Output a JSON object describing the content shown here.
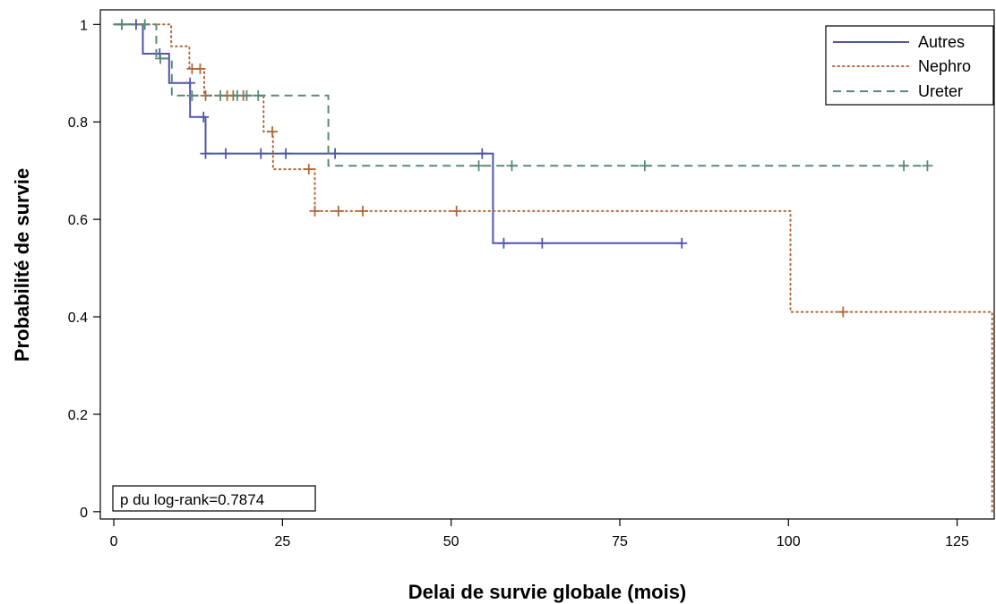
{
  "chart_data": {
    "type": "line",
    "step": true,
    "xlabel": "Delai de survie globale (mois)",
    "ylabel": "Probabilité de survie",
    "xlim": [
      -2,
      130.5
    ],
    "ylim": [
      -0.015,
      1.03
    ],
    "xticks": [
      0,
      25,
      50,
      75,
      100,
      125
    ],
    "yticks": [
      0,
      0.2,
      0.4,
      0.6,
      0.8,
      1
    ],
    "xtick_labels": [
      "0",
      "25",
      "50",
      "75",
      "100",
      "125"
    ],
    "ytick_labels": [
      "0",
      "0.2",
      "0.4",
      "0.6",
      "0.8",
      "1"
    ],
    "legend_position": "top-right",
    "annotation": "p du log-rank=0.7874",
    "series": [
      {
        "name": "Autres",
        "color": "#5156a8",
        "dash": "solid",
        "steps": [
          [
            0,
            1
          ],
          [
            4.3,
            0.94
          ],
          [
            8.2,
            0.88
          ],
          [
            11.3,
            0.81
          ],
          [
            13.6,
            0.735
          ],
          [
            56.2,
            0.551
          ],
          [
            84.2,
            0.551
          ]
        ],
        "censored": [
          [
            1.2,
            1
          ],
          [
            3.3,
            1
          ],
          [
            6.8,
            0.94
          ],
          [
            11.3,
            0.88
          ],
          [
            13.3,
            0.81
          ],
          [
            13.6,
            0.735
          ],
          [
            16.6,
            0.735
          ],
          [
            21.8,
            0.735
          ],
          [
            25.5,
            0.735
          ],
          [
            32.8,
            0.735
          ],
          [
            54.6,
            0.735
          ],
          [
            57.8,
            0.551
          ],
          [
            63.5,
            0.551
          ],
          [
            84.2,
            0.551
          ]
        ]
      },
      {
        "name": "Nephro",
        "color": "#b0683a",
        "dash": "dotted",
        "steps": [
          [
            0,
            1
          ],
          [
            8.5,
            0.955
          ],
          [
            11.2,
            0.909
          ],
          [
            13.4,
            0.854
          ],
          [
            22.2,
            0.78
          ],
          [
            23.6,
            0.703
          ],
          [
            29.8,
            0.617
          ],
          [
            100.3,
            0.41
          ],
          [
            130.2,
            0
          ],
          [
            130.5,
            0
          ]
        ],
        "censored": [
          [
            11.6,
            0.909
          ],
          [
            12.8,
            0.909
          ],
          [
            13.6,
            0.854
          ],
          [
            16.8,
            0.854
          ],
          [
            17.7,
            0.854
          ],
          [
            19.2,
            0.854
          ],
          [
            23.5,
            0.78
          ],
          [
            28.9,
            0.703
          ],
          [
            29.8,
            0.617
          ],
          [
            33.3,
            0.617
          ],
          [
            36.9,
            0.617
          ],
          [
            50.8,
            0.617
          ],
          [
            108.1,
            0.41
          ]
        ]
      },
      {
        "name": "Ureter",
        "color": "#5a8a74",
        "dash": "dashed",
        "steps": [
          [
            0,
            1
          ],
          [
            6.3,
            0.93
          ],
          [
            8.6,
            0.854
          ],
          [
            31.8,
            0.71
          ],
          [
            120.6,
            0.71
          ]
        ],
        "censored": [
          [
            1.2,
            1
          ],
          [
            4.6,
            1
          ],
          [
            6.9,
            0.93
          ],
          [
            11.6,
            0.854
          ],
          [
            15.8,
            0.854
          ],
          [
            18.3,
            0.854
          ],
          [
            19.7,
            0.854
          ],
          [
            21.4,
            0.854
          ],
          [
            54.1,
            0.71
          ],
          [
            59,
            0.71
          ],
          [
            78.7,
            0.71
          ],
          [
            117.1,
            0.71
          ],
          [
            120.6,
            0.71
          ]
        ]
      }
    ]
  }
}
